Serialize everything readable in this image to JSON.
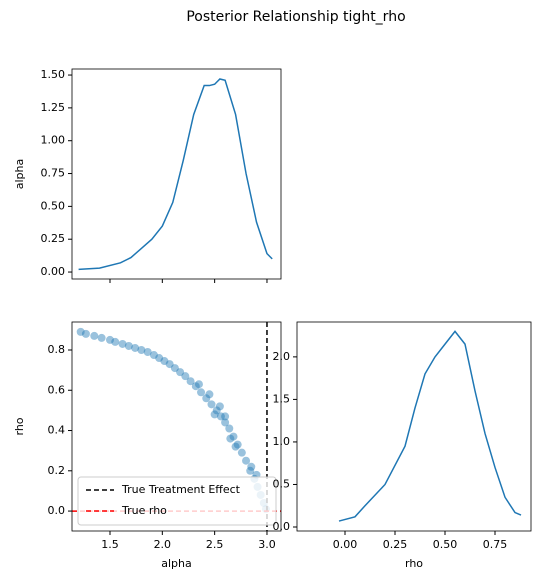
{
  "title": "Posterior Relationship tight_rho",
  "chart_data": [
    {
      "type": "line",
      "ylabel": "alpha",
      "color": "#1f77b4",
      "x": [
        1.2,
        1.4,
        1.6,
        1.7,
        1.8,
        1.9,
        2.0,
        2.1,
        2.2,
        2.3,
        2.4,
        2.45,
        2.5,
        2.55,
        2.6,
        2.7,
        2.8,
        2.9,
        3.0,
        3.05
      ],
      "values": [
        0.02,
        0.03,
        0.07,
        0.11,
        0.18,
        0.25,
        0.35,
        0.53,
        0.85,
        1.2,
        1.42,
        1.42,
        1.43,
        1.47,
        1.46,
        1.2,
        0.75,
        0.38,
        0.14,
        0.1
      ],
      "xlim": [
        1.137,
        3.134
      ],
      "ylim": [
        -0.053,
        1.546
      ],
      "xticks": [
        1.5,
        2,
        2.5,
        3
      ],
      "yticks": [
        {
          "value": 0,
          "label": "0.00"
        },
        0.25,
        {
          "value": 0.5,
          "label": "0.50"
        },
        0.75,
        {
          "value": 1,
          "label": "1.00"
        },
        1.25,
        {
          "value": 1.5,
          "label": "1.50"
        }
      ]
    },
    {
      "type": "scatter",
      "xlabel": "alpha",
      "ylabel": "rho",
      "color": "#1f77b4",
      "x": [
        1.22,
        1.27,
        1.35,
        1.42,
        1.5,
        1.55,
        1.62,
        1.68,
        1.74,
        1.8,
        1.86,
        1.92,
        1.97,
        2.02,
        2.07,
        2.12,
        2.17,
        2.22,
        2.27,
        2.32,
        2.37,
        2.42,
        2.47,
        2.52,
        2.56,
        2.6,
        2.64,
        2.68,
        2.72,
        2.76,
        2.8,
        2.84,
        2.88,
        2.91,
        2.94,
        2.97,
        2.99,
        2.45,
        2.5,
        2.6,
        2.7,
        2.35,
        2.55,
        2.65,
        2.85,
        2.9
      ],
      "values": [
        0.89,
        0.88,
        0.87,
        0.86,
        0.85,
        0.84,
        0.83,
        0.82,
        0.81,
        0.8,
        0.79,
        0.775,
        0.76,
        0.745,
        0.73,
        0.71,
        0.69,
        0.67,
        0.645,
        0.62,
        0.59,
        0.56,
        0.53,
        0.5,
        0.47,
        0.44,
        0.41,
        0.37,
        0.33,
        0.29,
        0.25,
        0.2,
        0.16,
        0.12,
        0.08,
        0.04,
        0.01,
        0.58,
        0.48,
        0.47,
        0.32,
        0.63,
        0.52,
        0.36,
        0.22,
        0.18
      ],
      "xlim": [
        1.137,
        3.134
      ],
      "ylim": [
        -0.099,
        0.939
      ],
      "xticks": [
        1.5,
        {
          "value": 2,
          "label": "2.0"
        },
        2.5,
        {
          "value": 3,
          "label": "3.0"
        }
      ],
      "yticks": [
        {
          "value": 0,
          "label": "0.0"
        },
        0.2,
        0.4,
        0.6,
        0.8
      ],
      "reference_lines": [
        {
          "name": "True Treatment Effect",
          "color": "#000000",
          "x": 3
        },
        {
          "name": "True rho",
          "color": "#ff0000",
          "y": 0
        }
      ],
      "legend": "lower left"
    },
    {
      "type": "line",
      "xlabel": "rho",
      "color": "#1f77b4",
      "x": [
        -0.03,
        0.05,
        0.1,
        0.2,
        0.3,
        0.35,
        0.4,
        0.45,
        0.5,
        0.55,
        0.6,
        0.65,
        0.7,
        0.75,
        0.8,
        0.85,
        0.88
      ],
      "values": [
        0.07,
        0.12,
        0.25,
        0.5,
        0.95,
        1.4,
        1.8,
        2.0,
        2.15,
        2.3,
        2.15,
        1.6,
        1.1,
        0.7,
        0.35,
        0.17,
        0.14
      ],
      "xlim": [
        -0.24,
        0.93
      ],
      "ylim": [
        -0.047,
        2.41
      ],
      "xticks": [
        {
          "value": 0,
          "label": "0.00"
        },
        0.25,
        {
          "value": 0.5,
          "label": "0.50"
        },
        0.75
      ],
      "yticks": [
        {
          "value": 0,
          "label": "0.0"
        },
        0.5,
        {
          "value": 1,
          "label": "1.0"
        },
        1.5,
        {
          "value": 2,
          "label": "2.0"
        }
      ]
    }
  ]
}
